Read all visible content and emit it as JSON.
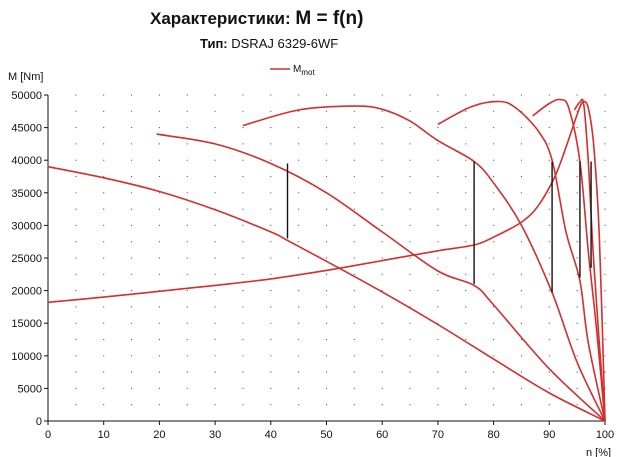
{
  "header": {
    "title_prefix": "Характеристики:",
    "title_formula": "M = f(n)",
    "subtitle_label": "Тип:",
    "subtitle_value": "DSRAJ 6329-6WF"
  },
  "chart_data": {
    "type": "line",
    "xlabel": "n  [%]",
    "ylabel": "M  [Nm]",
    "xlim": [
      0,
      100
    ],
    "ylim": [
      0,
      50000
    ],
    "x_ticks": [
      0,
      10,
      20,
      30,
      40,
      50,
      60,
      70,
      80,
      90,
      100
    ],
    "y_ticks": [
      0,
      5000,
      10000,
      15000,
      20000,
      25000,
      30000,
      35000,
      40000,
      45000,
      50000
    ],
    "grid": "dotted",
    "legend": {
      "position": "top-center",
      "entries": [
        {
          "name": "M",
          "subscript": "mot",
          "color": "#d62d2d"
        }
      ]
    },
    "series_color": "#d62d2d",
    "marker_color": "#111111",
    "series": [
      {
        "points": [
          [
            0,
            18200
          ],
          [
            10,
            19000
          ],
          [
            20,
            19900
          ],
          [
            30,
            20800
          ],
          [
            40,
            21800
          ],
          [
            50,
            23100
          ],
          [
            60,
            24600
          ],
          [
            70,
            26100
          ],
          [
            76.5,
            27000
          ],
          [
            80,
            28200
          ],
          [
            85,
            30500
          ],
          [
            88,
            33000
          ],
          [
            91,
            37500
          ],
          [
            93,
            42000
          ],
          [
            95,
            47000
          ],
          [
            96,
            48900
          ],
          [
            97,
            48000
          ],
          [
            98,
            42000
          ],
          [
            99,
            28000
          ],
          [
            100,
            0
          ]
        ]
      },
      {
        "points": [
          [
            0,
            39000
          ],
          [
            10,
            37300
          ],
          [
            20,
            35200
          ],
          [
            30,
            32400
          ],
          [
            40,
            29000
          ],
          [
            43,
            27700
          ],
          [
            50,
            24500
          ],
          [
            60,
            19800
          ],
          [
            70,
            14800
          ],
          [
            80,
            9500
          ],
          [
            90,
            4300
          ],
          [
            100,
            0
          ]
        ]
      },
      {
        "points": [
          [
            19.5,
            44000
          ],
          [
            30,
            42500
          ],
          [
            40,
            39500
          ],
          [
            50,
            35000
          ],
          [
            60,
            29000
          ],
          [
            70,
            23000
          ],
          [
            76.5,
            20800
          ],
          [
            80,
            17800
          ],
          [
            90,
            8000
          ],
          [
            100,
            0
          ]
        ]
      },
      {
        "points": [
          [
            35,
            45300
          ],
          [
            45,
            47700
          ],
          [
            55,
            48300
          ],
          [
            60,
            47800
          ],
          [
            65,
            46000
          ],
          [
            70,
            43000
          ],
          [
            76.5,
            39800
          ],
          [
            80,
            36500
          ],
          [
            85,
            30000
          ],
          [
            90.5,
            19700
          ],
          [
            95,
            9000
          ],
          [
            100,
            0
          ]
        ]
      },
      {
        "points": [
          [
            70,
            45500
          ],
          [
            76,
            48200
          ],
          [
            81,
            49000
          ],
          [
            84,
            48000
          ],
          [
            88,
            44500
          ],
          [
            90.5,
            40000
          ],
          [
            93,
            29000
          ],
          [
            95.5,
            21500
          ],
          [
            97,
            12000
          ],
          [
            100,
            0
          ]
        ]
      },
      {
        "points": [
          [
            87,
            46800
          ],
          [
            90,
            48700
          ],
          [
            92,
            49300
          ],
          [
            93.5,
            48000
          ],
          [
            95.5,
            39800
          ],
          [
            97,
            26000
          ],
          [
            98.5,
            14000
          ],
          [
            100,
            0
          ]
        ]
      },
      {
        "points": [
          [
            94.5,
            47700
          ],
          [
            95.5,
            48900
          ],
          [
            96.2,
            48500
          ],
          [
            97,
            39800
          ],
          [
            98,
            24000
          ],
          [
            100,
            0
          ]
        ]
      }
    ],
    "markers": [
      {
        "x": 43,
        "y_top": 39500,
        "y_bottom": 28000
      },
      {
        "x": 76.5,
        "y_top": 39800,
        "y_bottom": 21000
      },
      {
        "x": 90.5,
        "y_top": 39800,
        "y_bottom": 19700
      },
      {
        "x": 95.5,
        "y_top": 39800,
        "y_bottom": 22000
      },
      {
        "x": 97.5,
        "y_top": 39800,
        "y_bottom": 23500
      }
    ]
  }
}
